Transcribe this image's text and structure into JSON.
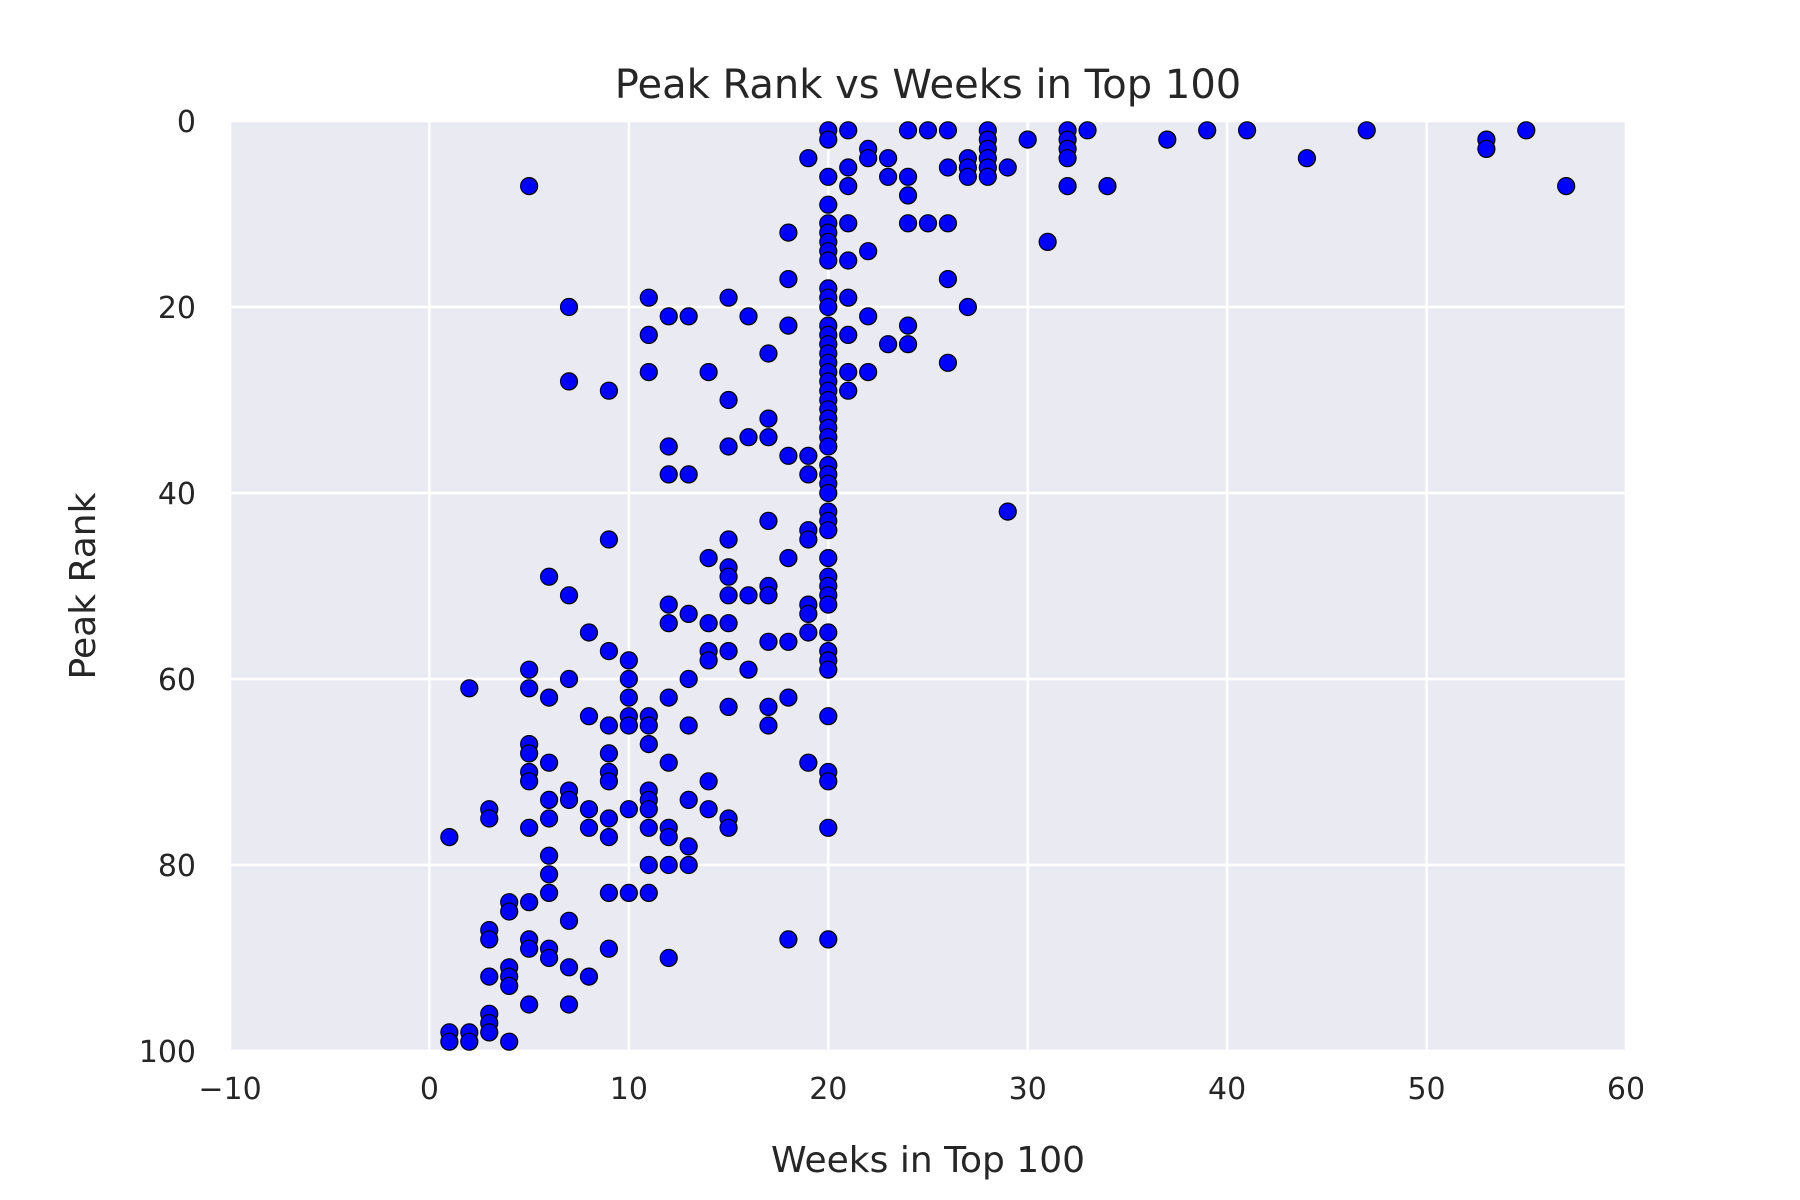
{
  "chart_data": {
    "type": "scatter",
    "title": "Peak Rank vs Weeks in Top 100",
    "xlabel": "Weeks in Top 100",
    "ylabel": "Peak Rank",
    "xlim": [
      -10,
      60
    ],
    "ylim": [
      100,
      0
    ],
    "y_inverted": true,
    "grid": true,
    "x_ticks": [
      "−10",
      "0",
      "10",
      "20",
      "30",
      "40",
      "50",
      "60"
    ],
    "x_tick_values": [
      -10,
      0,
      10,
      20,
      30,
      40,
      50,
      60
    ],
    "y_ticks": [
      "0",
      "20",
      "40",
      "60",
      "80",
      "100"
    ],
    "y_tick_values": [
      0,
      20,
      40,
      60,
      80,
      100
    ],
    "colors": {
      "point": "#0000ff",
      "point_edge": "#000000",
      "background": "#eaeaf2",
      "grid": "#ffffff"
    },
    "points": [
      [
        1,
        77
      ],
      [
        1,
        98
      ],
      [
        1,
        99
      ],
      [
        2,
        98
      ],
      [
        2,
        99
      ],
      [
        2,
        61
      ],
      [
        3,
        74
      ],
      [
        3,
        75
      ],
      [
        3,
        87
      ],
      [
        3,
        88
      ],
      [
        3,
        92
      ],
      [
        3,
        96
      ],
      [
        3,
        97
      ],
      [
        3,
        98
      ],
      [
        4,
        84
      ],
      [
        4,
        85
      ],
      [
        4,
        91
      ],
      [
        4,
        92
      ],
      [
        4,
        93
      ],
      [
        4,
        99
      ],
      [
        5,
        7
      ],
      [
        5,
        59
      ],
      [
        5,
        61
      ],
      [
        5,
        67
      ],
      [
        5,
        68
      ],
      [
        5,
        70
      ],
      [
        5,
        71
      ],
      [
        5,
        76
      ],
      [
        5,
        84
      ],
      [
        5,
        88
      ],
      [
        5,
        89
      ],
      [
        5,
        95
      ],
      [
        6,
        49
      ],
      [
        6,
        62
      ],
      [
        6,
        69
      ],
      [
        6,
        73
      ],
      [
        6,
        75
      ],
      [
        6,
        79
      ],
      [
        6,
        81
      ],
      [
        6,
        83
      ],
      [
        6,
        89
      ],
      [
        6,
        90
      ],
      [
        7,
        20
      ],
      [
        7,
        28
      ],
      [
        7,
        51
      ],
      [
        7,
        60
      ],
      [
        7,
        72
      ],
      [
        7,
        73
      ],
      [
        7,
        86
      ],
      [
        7,
        91
      ],
      [
        7,
        95
      ],
      [
        8,
        55
      ],
      [
        8,
        64
      ],
      [
        8,
        74
      ],
      [
        8,
        76
      ],
      [
        8,
        92
      ],
      [
        9,
        29
      ],
      [
        9,
        45
      ],
      [
        9,
        57
      ],
      [
        9,
        65
      ],
      [
        9,
        68
      ],
      [
        9,
        70
      ],
      [
        9,
        71
      ],
      [
        9,
        75
      ],
      [
        9,
        77
      ],
      [
        9,
        83
      ],
      [
        9,
        89
      ],
      [
        10,
        58
      ],
      [
        10,
        60
      ],
      [
        10,
        62
      ],
      [
        10,
        64
      ],
      [
        10,
        65
      ],
      [
        10,
        74
      ],
      [
        10,
        83
      ],
      [
        11,
        19
      ],
      [
        11,
        23
      ],
      [
        11,
        27
      ],
      [
        11,
        64
      ],
      [
        11,
        65
      ],
      [
        11,
        67
      ],
      [
        11,
        72
      ],
      [
        11,
        73
      ],
      [
        11,
        74
      ],
      [
        11,
        76
      ],
      [
        11,
        80
      ],
      [
        11,
        83
      ],
      [
        12,
        21
      ],
      [
        12,
        35
      ],
      [
        12,
        38
      ],
      [
        12,
        52
      ],
      [
        12,
        54
      ],
      [
        12,
        62
      ],
      [
        12,
        69
      ],
      [
        12,
        76
      ],
      [
        12,
        77
      ],
      [
        12,
        80
      ],
      [
        12,
        90
      ],
      [
        13,
        21
      ],
      [
        13,
        38
      ],
      [
        13,
        53
      ],
      [
        13,
        60
      ],
      [
        13,
        65
      ],
      [
        13,
        73
      ],
      [
        13,
        78
      ],
      [
        13,
        80
      ],
      [
        14,
        27
      ],
      [
        14,
        47
      ],
      [
        14,
        54
      ],
      [
        14,
        57
      ],
      [
        14,
        58
      ],
      [
        14,
        71
      ],
      [
        14,
        74
      ],
      [
        15,
        19
      ],
      [
        15,
        30
      ],
      [
        15,
        35
      ],
      [
        15,
        45
      ],
      [
        15,
        48
      ],
      [
        15,
        49
      ],
      [
        15,
        51
      ],
      [
        15,
        54
      ],
      [
        15,
        57
      ],
      [
        15,
        63
      ],
      [
        15,
        75
      ],
      [
        15,
        76
      ],
      [
        16,
        21
      ],
      [
        16,
        34
      ],
      [
        16,
        51
      ],
      [
        16,
        59
      ],
      [
        17,
        25
      ],
      [
        17,
        32
      ],
      [
        17,
        34
      ],
      [
        17,
        43
      ],
      [
        17,
        50
      ],
      [
        17,
        51
      ],
      [
        17,
        56
      ],
      [
        17,
        63
      ],
      [
        17,
        65
      ],
      [
        18,
        12
      ],
      [
        18,
        17
      ],
      [
        18,
        22
      ],
      [
        18,
        36
      ],
      [
        18,
        47
      ],
      [
        18,
        56
      ],
      [
        18,
        62
      ],
      [
        18,
        88
      ],
      [
        19,
        4
      ],
      [
        19,
        36
      ],
      [
        19,
        38
      ],
      [
        19,
        44
      ],
      [
        19,
        45
      ],
      [
        19,
        52
      ],
      [
        19,
        53
      ],
      [
        19,
        55
      ],
      [
        19,
        69
      ],
      [
        20,
        1
      ],
      [
        20,
        2
      ],
      [
        20,
        6
      ],
      [
        20,
        9
      ],
      [
        20,
        11
      ],
      [
        20,
        12
      ],
      [
        20,
        13
      ],
      [
        20,
        14
      ],
      [
        20,
        15
      ],
      [
        20,
        18
      ],
      [
        20,
        19
      ],
      [
        20,
        20
      ],
      [
        20,
        22
      ],
      [
        20,
        23
      ],
      [
        20,
        24
      ],
      [
        20,
        25
      ],
      [
        20,
        26
      ],
      [
        20,
        27
      ],
      [
        20,
        28
      ],
      [
        20,
        29
      ],
      [
        20,
        30
      ],
      [
        20,
        31
      ],
      [
        20,
        32
      ],
      [
        20,
        33
      ],
      [
        20,
        34
      ],
      [
        20,
        35
      ],
      [
        20,
        37
      ],
      [
        20,
        38
      ],
      [
        20,
        39
      ],
      [
        20,
        40
      ],
      [
        20,
        42
      ],
      [
        20,
        43
      ],
      [
        20,
        44
      ],
      [
        20,
        47
      ],
      [
        20,
        49
      ],
      [
        20,
        50
      ],
      [
        20,
        51
      ],
      [
        20,
        52
      ],
      [
        20,
        55
      ],
      [
        20,
        57
      ],
      [
        20,
        58
      ],
      [
        20,
        59
      ],
      [
        20,
        64
      ],
      [
        20,
        70
      ],
      [
        20,
        71
      ],
      [
        20,
        76
      ],
      [
        20,
        88
      ],
      [
        21,
        1
      ],
      [
        21,
        5
      ],
      [
        21,
        7
      ],
      [
        21,
        11
      ],
      [
        21,
        15
      ],
      [
        21,
        19
      ],
      [
        21,
        23
      ],
      [
        21,
        27
      ],
      [
        21,
        29
      ],
      [
        22,
        3
      ],
      [
        22,
        4
      ],
      [
        22,
        14
      ],
      [
        22,
        21
      ],
      [
        22,
        27
      ],
      [
        23,
        4
      ],
      [
        23,
        6
      ],
      [
        23,
        24
      ],
      [
        24,
        1
      ],
      [
        24,
        6
      ],
      [
        24,
        8
      ],
      [
        24,
        11
      ],
      [
        24,
        22
      ],
      [
        24,
        24
      ],
      [
        25,
        1
      ],
      [
        25,
        11
      ],
      [
        26,
        1
      ],
      [
        26,
        5
      ],
      [
        26,
        11
      ],
      [
        26,
        17
      ],
      [
        26,
        26
      ],
      [
        27,
        4
      ],
      [
        27,
        5
      ],
      [
        27,
        6
      ],
      [
        27,
        20
      ],
      [
        28,
        1
      ],
      [
        28,
        2
      ],
      [
        28,
        3
      ],
      [
        28,
        4
      ],
      [
        28,
        5
      ],
      [
        28,
        6
      ],
      [
        29,
        5
      ],
      [
        29,
        42
      ],
      [
        30,
        2
      ],
      [
        31,
        13
      ],
      [
        32,
        1
      ],
      [
        32,
        2
      ],
      [
        32,
        3
      ],
      [
        32,
        4
      ],
      [
        32,
        7
      ],
      [
        33,
        1
      ],
      [
        34,
        7
      ],
      [
        37,
        2
      ],
      [
        39,
        1
      ],
      [
        41,
        1
      ],
      [
        44,
        4
      ],
      [
        47,
        1
      ],
      [
        53,
        2
      ],
      [
        53,
        3
      ],
      [
        55,
        1
      ],
      [
        57,
        7
      ]
    ]
  }
}
